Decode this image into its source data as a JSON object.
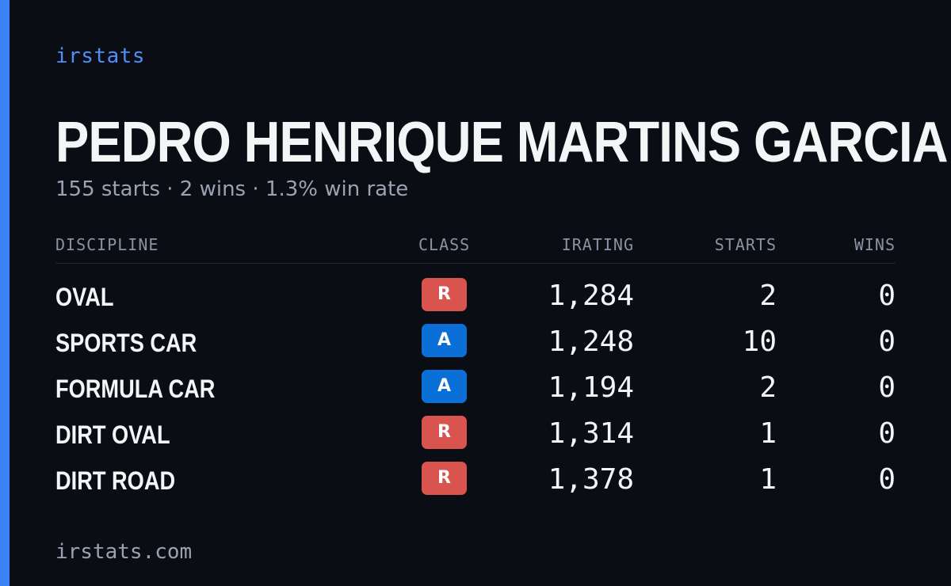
{
  "brand": "irstats",
  "driver": {
    "name": "PEDRO HENRIQUE MARTINS GARCIA",
    "summary": "155 starts · 2 wins · 1.3% win rate"
  },
  "table": {
    "headers": {
      "discipline": "DISCIPLINE",
      "class": "CLASS",
      "irating": "IRATING",
      "starts": "STARTS",
      "wins": "WINS"
    },
    "rows": [
      {
        "discipline": "OVAL",
        "class": "R",
        "irating": "1,284",
        "starts": "2",
        "wins": "0"
      },
      {
        "discipline": "SPORTS CAR",
        "class": "A",
        "irating": "1,248",
        "starts": "10",
        "wins": "0"
      },
      {
        "discipline": "FORMULA CAR",
        "class": "A",
        "irating": "1,194",
        "starts": "2",
        "wins": "0"
      },
      {
        "discipline": "DIRT OVAL",
        "class": "R",
        "irating": "1,314",
        "starts": "1",
        "wins": "0"
      },
      {
        "discipline": "DIRT ROAD",
        "class": "R",
        "irating": "1,378",
        "starts": "1",
        "wins": "0"
      }
    ]
  },
  "footer": "irstats.com",
  "colors": {
    "accent": "#3b82f6",
    "background": "#0b0d14",
    "class_r": "#d9534f",
    "class_a": "#0a6fd6"
  }
}
